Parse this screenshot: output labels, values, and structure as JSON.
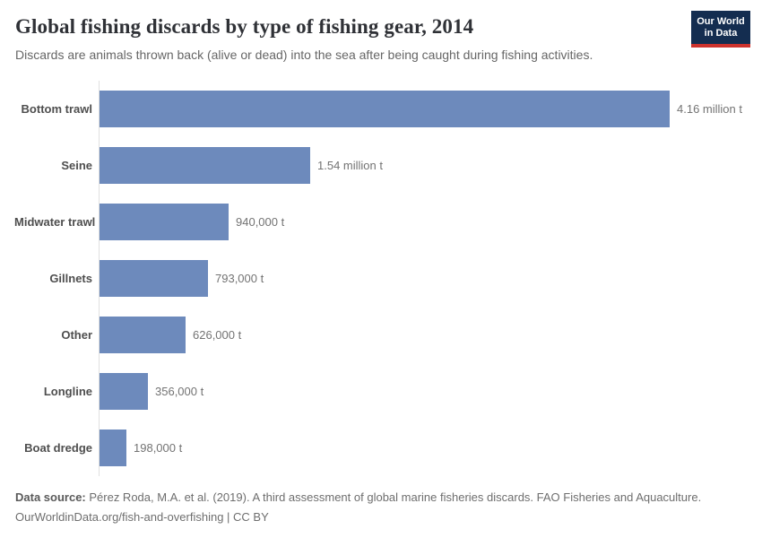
{
  "header": {
    "title": "Global fishing discards by type of fishing gear, 2014",
    "subtitle": "Discards are animals thrown back (alive or dead) into the sea after being caught during fishing activities.",
    "logo": {
      "line1": "Our World",
      "line2": "in Data",
      "bg_color": "#142d50",
      "accent_color": "#cd322d"
    }
  },
  "chart_data": {
    "type": "bar",
    "orientation": "horizontal",
    "title": "Global fishing discards by type of fishing gear, 2014",
    "subtitle": "Discards are animals thrown back (alive or dead) into the sea after being caught during fishing activities.",
    "categories": [
      "Bottom trawl",
      "Seine",
      "Midwater trawl",
      "Gillnets",
      "Other",
      "Longline",
      "Boat dredge"
    ],
    "values": [
      4160000,
      1540000,
      940000,
      793000,
      626000,
      356000,
      198000
    ],
    "value_labels": [
      "4.16 million t",
      "1.54 million t",
      "940,000 t",
      "793,000 t",
      "626,000 t",
      "356,000 t",
      "198,000 t"
    ],
    "unit": "t",
    "xlim": [
      0,
      4160000
    ],
    "grid": false,
    "legend": false,
    "bar_color": "#6d8abc",
    "axis_color": "#e0e0e0"
  },
  "footer": {
    "datasource_label": "Data source:",
    "datasource_text": " Pérez Roda, M.A. et al. (2019). A third assessment of global marine fisheries discards. FAO Fisheries and Aquaculture.",
    "link_line": "OurWorldinData.org/fish-and-overfishing | CC BY"
  }
}
